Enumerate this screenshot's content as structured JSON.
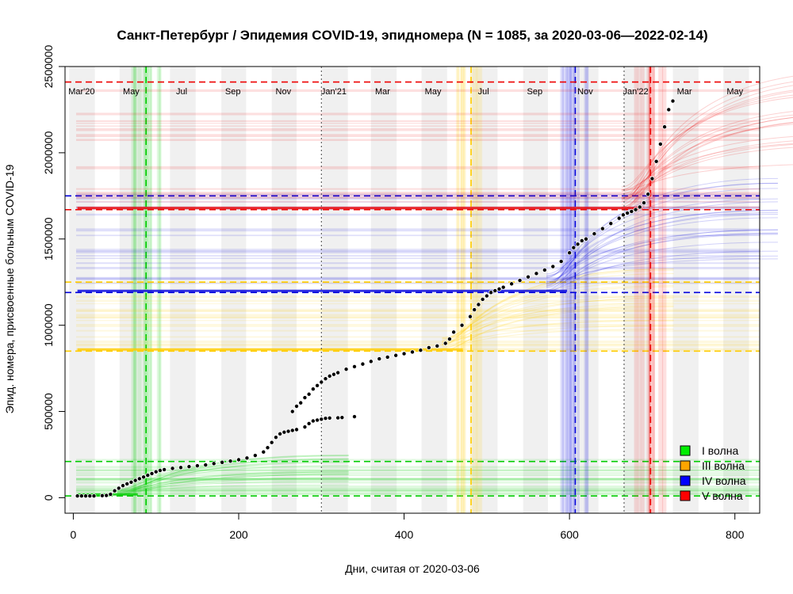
{
  "chart_data": {
    "type": "scatter",
    "title": "Санкт-Петербург / Эпидемия COVID-19, эпидномера (N = 1085, за 2020-03-06—2022-02-14)",
    "xlabel": "Дни, считая от 2020-03-06",
    "ylabel": "Эпид. номера, присвоенные больным COVID-19",
    "xlim": [
      -10,
      830
    ],
    "ylim": [
      -90000,
      2500000
    ],
    "x_ticks": [
      0,
      200,
      400,
      600,
      800
    ],
    "y_ticks": [
      0,
      500000,
      1000000,
      1500000,
      2000000,
      2500000
    ],
    "month_labels": [
      {
        "label": "Mar'20",
        "x": 10
      },
      {
        "label": "May",
        "x": 70
      },
      {
        "label": "Jul",
        "x": 131
      },
      {
        "label": "Sep",
        "x": 193
      },
      {
        "label": "Nov",
        "x": 254
      },
      {
        "label": "Jan'21",
        "x": 315
      },
      {
        "label": "Mar",
        "x": 374
      },
      {
        "label": "May",
        "x": 435
      },
      {
        "label": "Jul",
        "x": 496
      },
      {
        "label": "Sep",
        "x": 558
      },
      {
        "label": "Nov",
        "x": 619
      },
      {
        "label": "Jan'22",
        "x": 680
      },
      {
        "label": "Mar",
        "x": 739
      },
      {
        "label": "May",
        "x": 800
      }
    ],
    "year_lines_x": [
      300,
      666
    ],
    "legend": {
      "placement": "bottom-right",
      "items": [
        {
          "label": "I волна",
          "color": "#00ee00"
        },
        {
          "label": "III волна",
          "color": "#ffa500"
        },
        {
          "label": "IV волна",
          "color": "#0000ff"
        },
        {
          "label": "V волна",
          "color": "#ff0000"
        }
      ]
    },
    "waves": [
      {
        "name": "I волна",
        "color": "#00cc00",
        "peak_day": 88,
        "y_low": 10000,
        "y_high": 210000
      },
      {
        "name": "III волна",
        "color": "#ffcc00",
        "peak_day": 481,
        "y_low": 850000,
        "y_high": 1250000
      },
      {
        "name": "IV волна",
        "color": "#0000dd",
        "peak_day": 607,
        "y_low": 1190000,
        "y_high": 1750000
      },
      {
        "name": "V волна",
        "color": "#ee0000",
        "peak_day": 698,
        "y_low": 1670000,
        "y_high": 2410000
      }
    ],
    "series": [
      {
        "points": [
          [
            5,
            10000
          ],
          [
            10,
            10000
          ],
          [
            15,
            10000
          ],
          [
            20,
            10000
          ],
          [
            25,
            10000
          ],
          [
            35,
            12000
          ],
          [
            40,
            13000
          ],
          [
            45,
            20000
          ],
          [
            50,
            40000
          ],
          [
            55,
            55000
          ],
          [
            60,
            70000
          ],
          [
            65,
            80000
          ],
          [
            70,
            90000
          ],
          [
            75,
            100000
          ],
          [
            80,
            110000
          ],
          [
            85,
            120000
          ],
          [
            90,
            130000
          ],
          [
            95,
            140000
          ],
          [
            100,
            150000
          ],
          [
            105,
            158000
          ],
          [
            110,
            163000
          ],
          [
            120,
            170000
          ],
          [
            130,
            175000
          ],
          [
            140,
            180000
          ],
          [
            150,
            185000
          ],
          [
            160,
            190000
          ],
          [
            170,
            198000
          ],
          [
            180,
            205000
          ],
          [
            190,
            212000
          ],
          [
            200,
            220000
          ],
          [
            210,
            230000
          ],
          [
            220,
            245000
          ],
          [
            230,
            265000
          ],
          [
            235,
            290000
          ],
          [
            240,
            320000
          ],
          [
            245,
            350000
          ],
          [
            250,
            370000
          ],
          [
            255,
            380000
          ],
          [
            260,
            385000
          ],
          [
            265,
            390000
          ],
          [
            270,
            395000
          ],
          [
            280,
            410000
          ],
          [
            285,
            430000
          ],
          [
            290,
            445000
          ],
          [
            295,
            450000
          ],
          [
            300,
            455000
          ],
          [
            305,
            460000
          ],
          [
            310,
            462000
          ],
          [
            320,
            463000
          ],
          [
            325,
            465000
          ],
          [
            340,
            470000
          ],
          [
            265,
            500000
          ],
          [
            270,
            530000
          ],
          [
            275,
            550000
          ],
          [
            280,
            580000
          ],
          [
            285,
            600000
          ],
          [
            290,
            630000
          ],
          [
            295,
            650000
          ],
          [
            300,
            670000
          ],
          [
            305,
            690000
          ],
          [
            310,
            705000
          ],
          [
            315,
            715000
          ],
          [
            320,
            725000
          ],
          [
            330,
            745000
          ],
          [
            340,
            760000
          ],
          [
            350,
            775000
          ],
          [
            360,
            790000
          ],
          [
            370,
            805000
          ],
          [
            380,
            815000
          ],
          [
            390,
            825000
          ],
          [
            400,
            835000
          ],
          [
            410,
            845000
          ],
          [
            420,
            855000
          ],
          [
            430,
            870000
          ],
          [
            440,
            880000
          ],
          [
            450,
            895000
          ],
          [
            455,
            920000
          ],
          [
            460,
            960000
          ],
          [
            470,
            1000000
          ],
          [
            480,
            1050000
          ],
          [
            485,
            1090000
          ],
          [
            490,
            1120000
          ],
          [
            495,
            1150000
          ],
          [
            500,
            1170000
          ],
          [
            505,
            1190000
          ],
          [
            510,
            1200000
          ],
          [
            515,
            1210000
          ],
          [
            520,
            1220000
          ],
          [
            530,
            1240000
          ],
          [
            540,
            1260000
          ],
          [
            550,
            1280000
          ],
          [
            560,
            1300000
          ],
          [
            570,
            1320000
          ],
          [
            580,
            1340000
          ],
          [
            590,
            1370000
          ],
          [
            600,
            1420000
          ],
          [
            605,
            1450000
          ],
          [
            610,
            1470000
          ],
          [
            615,
            1490000
          ],
          [
            620,
            1500000
          ],
          [
            630,
            1530000
          ],
          [
            640,
            1560000
          ],
          [
            650,
            1590000
          ],
          [
            660,
            1620000
          ],
          [
            665,
            1640000
          ],
          [
            670,
            1650000
          ],
          [
            675,
            1660000
          ],
          [
            680,
            1670000
          ],
          [
            685,
            1685000
          ],
          [
            690,
            1710000
          ],
          [
            695,
            1760000
          ],
          [
            700,
            1850000
          ],
          [
            705,
            1950000
          ],
          [
            710,
            2050000
          ],
          [
            715,
            2150000
          ],
          [
            720,
            2250000
          ],
          [
            725,
            2300000
          ]
        ]
      }
    ]
  }
}
